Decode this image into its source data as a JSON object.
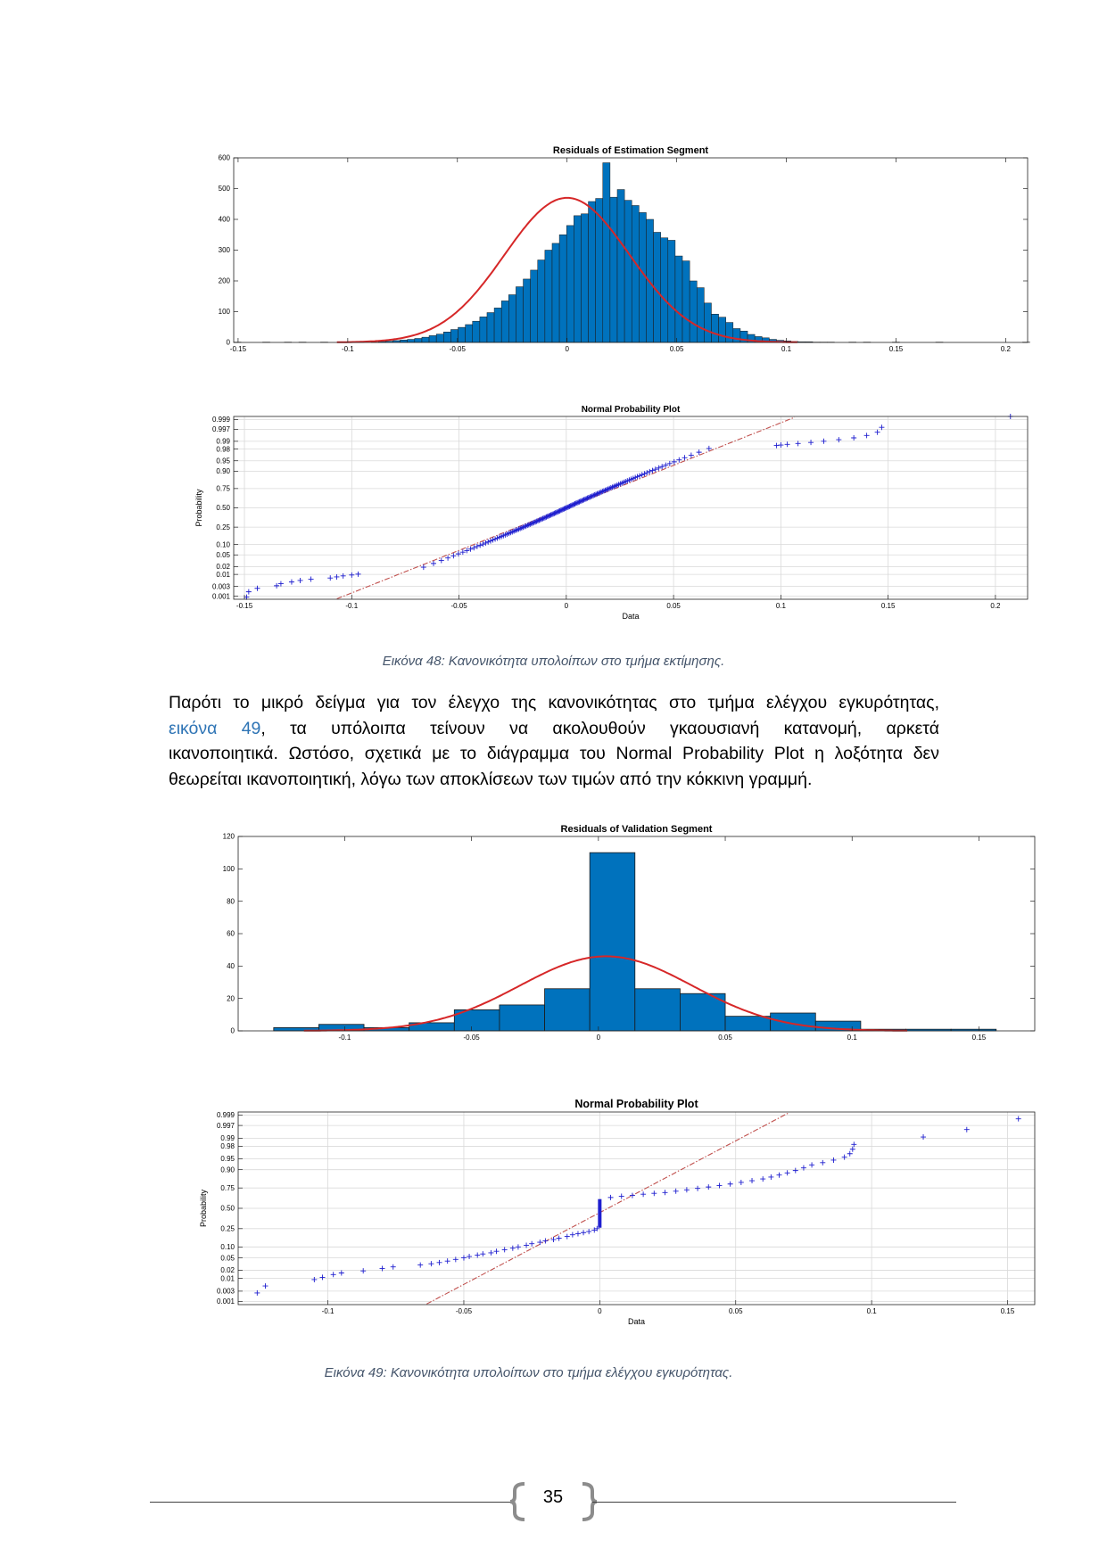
{
  "figures": {
    "hist_est": {
      "title": "Residuals of Estimation Segment",
      "chart_data": {
        "type": "bar",
        "title": "Residuals of Estimation Segment",
        "xlim": [
          -0.152,
          0.21
        ],
        "ylim": [
          0,
          600
        ],
        "xticks": [
          -0.15,
          -0.1,
          -0.05,
          0,
          0.05,
          0.1,
          0.15,
          0.2
        ],
        "xtick_labels": [
          "-0.15",
          "-0.1",
          "-0.05",
          "0",
          "0.05",
          "0.1",
          "0.15",
          "0.2"
        ],
        "yticks": [
          0,
          100,
          200,
          300,
          400,
          500,
          600
        ],
        "ytick_labels": [
          "0",
          "100",
          "200",
          "300",
          "400",
          "500",
          "600"
        ],
        "bin_width": 0.0033,
        "bin_start": -0.152,
        "values": [
          1,
          0,
          0,
          0,
          1,
          0,
          0,
          1,
          0,
          1,
          0,
          0,
          1,
          0,
          0,
          0,
          0,
          1,
          0,
          1,
          3,
          4,
          6,
          8,
          10,
          13,
          17,
          22,
          27,
          34,
          42,
          49,
          58,
          69,
          83,
          97,
          112,
          135,
          155,
          181,
          206,
          235,
          268,
          300,
          322,
          350,
          380,
          412,
          418,
          458,
          468,
          584,
          472,
          497,
          462,
          445,
          422,
          400,
          358,
          340,
          332,
          281,
          265,
          200,
          178,
          128,
          92,
          82,
          65,
          45,
          37,
          26,
          19,
          15,
          10,
          7,
          5,
          3,
          2,
          2,
          1,
          1,
          1,
          0,
          0,
          1,
          0,
          1,
          0,
          0,
          0,
          1,
          0,
          0,
          0,
          0,
          0,
          1,
          0,
          0,
          0,
          0,
          0,
          0,
          0,
          0,
          0,
          0,
          0,
          1
        ],
        "fit": "normal",
        "fit_mean": 0.0,
        "fit_sd": 0.0285,
        "fit_peak": 470
      }
    },
    "npp_est": {
      "title": "Normal Probability Plot",
      "xlabel": "Data",
      "ylabel": "Probability",
      "chart_data": {
        "type": "scatter",
        "title": "Normal Probability Plot",
        "xlabel": "Data",
        "ylabel": "Probability",
        "xlim": [
          -0.155,
          0.215
        ],
        "xticks": [
          -0.15,
          -0.1,
          -0.05,
          0,
          0.05,
          0.1,
          0.15,
          0.2
        ],
        "xtick_labels": [
          "-0.15",
          "-0.1",
          "-0.05",
          "0",
          "0.05",
          "0.1",
          "0.15",
          "0.2"
        ],
        "yticks": [
          0.001,
          0.003,
          0.01,
          0.02,
          0.05,
          0.1,
          0.25,
          0.5,
          0.75,
          0.9,
          0.95,
          0.98,
          0.99,
          0.997,
          0.999
        ],
        "ytick_labels": [
          "0.001",
          "0.003",
          "0.01",
          "0.02",
          "0.05",
          "0.10",
          "0.25",
          "0.50",
          "0.75",
          "0.90",
          "0.95",
          "0.98",
          "0.99",
          "0.997",
          "0.999"
        ],
        "sd": 0.0285,
        "outliers_low": [
          -0.149,
          -0.148,
          -0.144,
          -0.135,
          -0.133,
          -0.128,
          -0.124,
          -0.119,
          -0.11,
          -0.107,
          -0.104,
          -0.1,
          -0.097
        ],
        "outliers_high": [
          0.098,
          0.1,
          0.103,
          0.108,
          0.114,
          0.12,
          0.127,
          0.134,
          0.14,
          0.145,
          0.147,
          0.207
        ]
      }
    },
    "hist_val": {
      "title": "Residuals of Validation Segment",
      "chart_data": {
        "type": "bar",
        "title": "Residuals of Validation Segment",
        "xlim": [
          -0.142,
          0.172
        ],
        "ylim": [
          0,
          120
        ],
        "xticks": [
          -0.1,
          -0.05,
          0,
          0.05,
          0.1,
          0.15
        ],
        "xtick_labels": [
          "-0.1",
          "-0.05",
          "0",
          "0.05",
          "0.1",
          "0.15"
        ],
        "yticks": [
          0,
          20,
          40,
          60,
          80,
          100,
          120
        ],
        "ytick_labels": [
          "0",
          "20",
          "40",
          "60",
          "80",
          "100",
          "120"
        ],
        "bin_edges": [
          -0.128,
          -0.1102,
          -0.0924,
          -0.0746,
          -0.0568,
          -0.039,
          -0.0212,
          -0.0034,
          0.0144,
          0.0322,
          0.05,
          0.0678,
          0.0856,
          0.1034,
          0.1212,
          0.139,
          0.1568
        ],
        "values": [
          2,
          4,
          2,
          5,
          13,
          16,
          26,
          110,
          26,
          23,
          9,
          11,
          6,
          1,
          1,
          1
        ],
        "fit": "normal",
        "fit_mean": 0.003,
        "fit_sd": 0.034,
        "fit_peak": 46
      }
    },
    "npp_val": {
      "title": "Normal Probability Plot",
      "xlabel": "Data",
      "ylabel": "Probability",
      "chart_data": {
        "type": "scatter",
        "title": "Normal Probability Plot",
        "xlabel": "Data",
        "ylabel": "Probability",
        "xlim": [
          -0.133,
          0.16
        ],
        "xticks": [
          -0.1,
          -0.05,
          0,
          0.05,
          0.1,
          0.15
        ],
        "xtick_labels": [
          "-0.1",
          "-0.05",
          "0",
          "0.05",
          "0.1",
          "0.15"
        ],
        "yticks": [
          0.001,
          0.003,
          0.01,
          0.02,
          0.05,
          0.1,
          0.25,
          0.5,
          0.75,
          0.9,
          0.95,
          0.98,
          0.99,
          0.997,
          0.999
        ],
        "ytick_labels": [
          "0.001",
          "0.003",
          "0.01",
          "0.02",
          "0.05",
          "0.10",
          "0.25",
          "0.50",
          "0.75",
          "0.90",
          "0.95",
          "0.98",
          "0.99",
          "0.997",
          "0.999"
        ],
        "points_low": [
          [
            -0.126,
            0.0025
          ],
          [
            -0.123,
            0.005
          ],
          [
            -0.105,
            0.009
          ],
          [
            -0.102,
            0.011
          ],
          [
            -0.098,
            0.014
          ],
          [
            -0.095,
            0.016
          ],
          [
            -0.087,
            0.019
          ],
          [
            -0.08,
            0.023
          ],
          [
            -0.076,
            0.026
          ],
          [
            -0.066,
            0.03
          ],
          [
            -0.062,
            0.033
          ],
          [
            -0.059,
            0.036
          ],
          [
            -0.056,
            0.04
          ],
          [
            -0.053,
            0.045
          ],
          [
            -0.05,
            0.05
          ],
          [
            -0.048,
            0.055
          ],
          [
            -0.045,
            0.06
          ],
          [
            -0.043,
            0.065
          ],
          [
            -0.04,
            0.07
          ],
          [
            -0.038,
            0.077
          ],
          [
            -0.035,
            0.085
          ],
          [
            -0.032,
            0.093
          ],
          [
            -0.03,
            0.1
          ],
          [
            -0.027,
            0.11
          ],
          [
            -0.025,
            0.12
          ],
          [
            -0.022,
            0.13
          ],
          [
            -0.02,
            0.14
          ],
          [
            -0.017,
            0.15
          ],
          [
            -0.015,
            0.16
          ],
          [
            -0.012,
            0.175
          ],
          [
            -0.01,
            0.19
          ],
          [
            -0.008,
            0.2
          ],
          [
            -0.006,
            0.21
          ],
          [
            -0.004,
            0.22
          ],
          [
            -0.002,
            0.235
          ],
          [
            -0.001,
            0.25
          ]
        ],
        "vertical_run": {
          "x": 0.0,
          "p_from": 0.26,
          "p_to": 0.62
        },
        "points_high": [
          [
            0.004,
            0.64
          ],
          [
            0.008,
            0.655
          ],
          [
            0.012,
            0.665
          ],
          [
            0.016,
            0.68
          ],
          [
            0.02,
            0.69
          ],
          [
            0.024,
            0.7
          ],
          [
            0.028,
            0.715
          ],
          [
            0.032,
            0.73
          ],
          [
            0.036,
            0.745
          ],
          [
            0.04,
            0.76
          ],
          [
            0.044,
            0.775
          ],
          [
            0.048,
            0.79
          ],
          [
            0.052,
            0.805
          ],
          [
            0.056,
            0.82
          ],
          [
            0.06,
            0.835
          ],
          [
            0.063,
            0.85
          ],
          [
            0.066,
            0.865
          ],
          [
            0.069,
            0.88
          ],
          [
            0.072,
            0.895
          ],
          [
            0.075,
            0.91
          ],
          [
            0.078,
            0.925
          ],
          [
            0.082,
            0.935
          ],
          [
            0.086,
            0.945
          ],
          [
            0.09,
            0.955
          ],
          [
            0.092,
            0.965
          ],
          [
            0.093,
            0.975
          ],
          [
            0.0935,
            0.983
          ],
          [
            0.119,
            0.991
          ],
          [
            0.135,
            0.9955
          ],
          [
            0.154,
            0.9985
          ]
        ],
        "ref_line": {
          "mean": 0.003,
          "sd": 0.021
        }
      }
    }
  },
  "captions": {
    "fig48": "Εικόνα 48: Κανονικότητα υπολοίπων στο τμήμα εκτίμησης.",
    "fig49": "Εικόνα 49: Κανονικότητα υπολοίπων στο τμήμα ελέγχου εγκυρότητας."
  },
  "paragraph": {
    "line1": "Παρότι το μικρό δείγμα για τον έλεγχο της κανονικότητας στο τμήμα ελέγχου εγκυρότητας,",
    "line2_link": "εικόνα 49",
    "line2_rest": ", τα υπόλοιπα τείνουν να ακολουθούν γκαουσιανή κατανομή, αρκετά",
    "line3": "ικανοποιητικά. Ωστόσο, σχετικά με το διάγραμμα του Normal Probability Plot η λοξότητα  δεν",
    "line4": "θεωρείται ικανοποιητική, λόγω των αποκλίσεων των τιμών από την  κόκκινη γραμμή."
  },
  "footer": {
    "page_number": "35"
  },
  "colors": {
    "bar": "#0072bd",
    "fit": "#d62728",
    "marker": "#1f1fcf",
    "ref": "#c0504d"
  }
}
